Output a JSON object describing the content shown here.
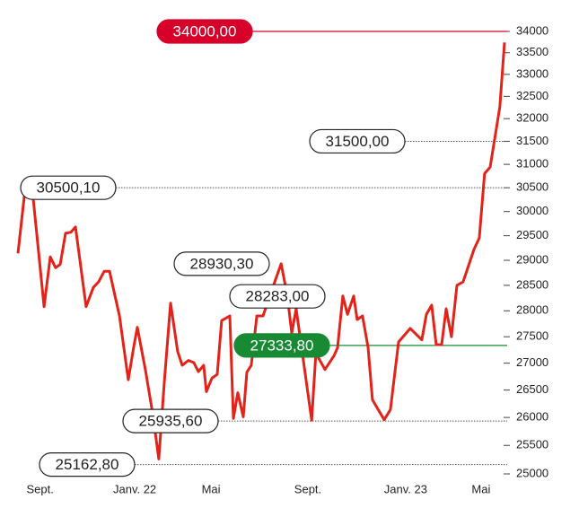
{
  "chart_data": {
    "type": "line",
    "x": [
      -1,
      -0.68,
      -0.31,
      0.18,
      0.46,
      0.7,
      0.91,
      1.15,
      1.39,
      1.6,
      2.08,
      2.41,
      2.65,
      2.9,
      3.14,
      3.59,
      3.99,
      4.24,
      4.4,
      4.76,
      5.09,
      5.37,
      5.62,
      5.9,
      6.22,
      6.43,
      6.71,
      6.95,
      7.16,
      7.4,
      7.52,
      7.77,
      8.01,
      8.21,
      8.58,
      8.74,
      8.94,
      9.19,
      9.35,
      9.55,
      9.8,
      10.08,
      10.49,
      10.9,
      11.18,
      11.38,
      11.58,
      12.28,
      12.47,
      12.88,
      13.29,
      13.45,
      13.69,
      13.9,
      14.18,
      14.34,
      14.58,
      14.83,
      15.03,
      15.56,
      15.84,
      16.21,
      16.74,
      17.26,
      17.47,
      17.71,
      17.91,
      18.16,
      18.36,
      18.6,
      18.85,
      19.13,
      19.62,
      19.86,
      20.1,
      20.35,
      20.79,
      21
    ],
    "series": [
      {
        "color": "#e2231a",
        "values": [
          29140,
          30460,
          30270,
          28080,
          29070,
          28850,
          28920,
          29550,
          29570,
          29680,
          28080,
          28460,
          28570,
          28780,
          28780,
          27900,
          26690,
          27320,
          27680,
          26880,
          26080,
          25260,
          26660,
          28150,
          27220,
          26960,
          27050,
          27010,
          26840,
          26960,
          26470,
          26720,
          26790,
          27810,
          27900,
          25980,
          26450,
          26010,
          26830,
          26960,
          27900,
          27900,
          28420,
          28930,
          28290,
          27570,
          28040,
          25950,
          27190,
          26880,
          27140,
          27290,
          28290,
          27930,
          28290,
          27830,
          27900,
          27300,
          26320,
          25960,
          26140,
          27400,
          27660,
          27440,
          27930,
          28110,
          27350,
          27350,
          28040,
          27500,
          28500,
          28570,
          29220,
          29450,
          30800,
          30940,
          32260,
          33740
        ]
      }
    ],
    "xlim": [
      -1,
      21
    ],
    "xticks": [
      {
        "value": 0,
        "label": "Sept."
      },
      {
        "value": 4.28,
        "label": "Janv. 22"
      },
      {
        "value": 7.73,
        "label": "Mai"
      },
      {
        "value": 12.11,
        "label": "Sept."
      },
      {
        "value": 16.53,
        "label": "Janv. 23"
      },
      {
        "value": 19.94,
        "label": "Mai"
      }
    ],
    "ylim": [
      25000,
      34000
    ],
    "yticks": [
      25000,
      25500,
      26000,
      26500,
      27000,
      27500,
      28000,
      28500,
      29000,
      29500,
      30000,
      30500,
      31000,
      31500,
      32000,
      32500,
      33000,
      33500,
      34000
    ],
    "log_scale": true,
    "annotations": [
      {
        "label": "34000,00",
        "value": 34000,
        "color": "#d7002b",
        "line": "solid"
      },
      {
        "label": "31500,00",
        "value": 31500,
        "line": "dotted"
      },
      {
        "label": "30500,10",
        "value": 30500.1,
        "line": "dotted"
      },
      {
        "label": "28930,30",
        "value": 28930.3
      },
      {
        "label": "28283,00",
        "value": 28283
      },
      {
        "label": "27333,80",
        "value": 27333.8,
        "color": "#188a34",
        "line": "solid"
      },
      {
        "label": "25935,60",
        "value": 25935.6,
        "line": "dotted"
      },
      {
        "label": "25162,80",
        "value": 25162.8,
        "line": "dotted"
      }
    ]
  }
}
